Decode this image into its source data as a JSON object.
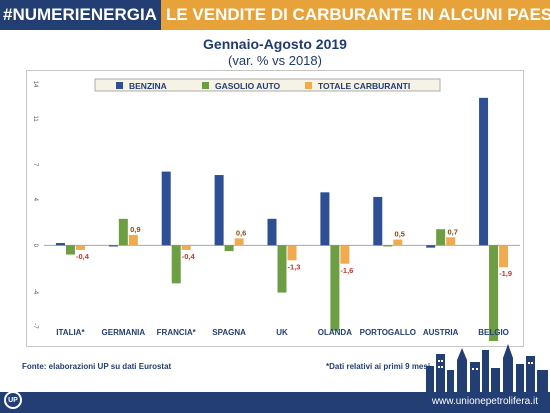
{
  "header": {
    "hashtag": "#NUMERIENERGIA",
    "headline": "LE VENDITE DI CARBURANTE IN ALCUNI PAESI UE"
  },
  "chart_data": {
    "type": "bar",
    "title": "Gennaio-Agosto 2019",
    "subtitle": "(var. % vs 2018)",
    "categories": [
      "ITALIA*",
      "GERMANIA",
      "FRANCIA*",
      "SPAGNA",
      "UK",
      "OLANDA",
      "PORTOGALLO",
      "AUSTRIA",
      "BELGIO"
    ],
    "series": [
      {
        "name": "BENZINA",
        "color": "#2f4f94",
        "values": [
          0.2,
          -0.1,
          6.4,
          6.1,
          2.3,
          4.6,
          4.2,
          -0.2,
          12.8
        ]
      },
      {
        "name": "GASOLIO AUTO",
        "color": "#6d9e43",
        "values": [
          -0.8,
          2.3,
          -3.3,
          -0.5,
          -4.1,
          -7.4,
          -0.1,
          1.4,
          -8.3
        ]
      },
      {
        "name": "TOTALE CARBURANTI",
        "color": "#f0ab51",
        "values": [
          -0.4,
          0.9,
          -0.4,
          0.6,
          -1.3,
          -1.6,
          0.5,
          0.7,
          -1.9
        ]
      }
    ],
    "data_labels": [
      "-0,4",
      "0,9",
      "-0,4",
      "0,6",
      "-1,3",
      "-1,6",
      "0,5",
      "0,7",
      "-1,9"
    ],
    "y_ticks": [
      14,
      11,
      7,
      4,
      0,
      -4,
      -7
    ],
    "ylim": [
      -7,
      14
    ],
    "legend_position": "top",
    "grid": false
  },
  "footer": {
    "source": "Fonte: elaborazioni UP su dati Eurostat",
    "note": "*Dati relativi ai primi 9 mesi",
    "website": "www.unionepetrolifera.it",
    "logo_text": "UP"
  },
  "colors": {
    "banner_blue": "#223e73",
    "banner_orange": "#e8a23a",
    "negative_label": "#c0392b",
    "positive_label": "#8a4b12"
  }
}
